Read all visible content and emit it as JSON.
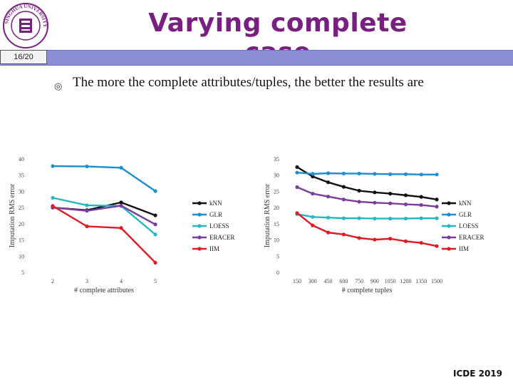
{
  "header": {
    "title": "Varying complete case",
    "page_indicator": "16/20",
    "logo_icon": "university-seal-icon",
    "logo_text": "TSINGHUA UNIVERSITY"
  },
  "bullet": {
    "icon": "circled-dot-bullet-icon",
    "text": "The more the complete attributes/tuples, the better the results are"
  },
  "footer": {
    "text": "ICDE 2019"
  },
  "colors": {
    "title": "#7a1f82",
    "title_bar": "#8b8ed6",
    "kNN": "#111111",
    "GLR": "#1b8fd1",
    "LOESS": "#26b7c2",
    "ERACER": "#7a3d9e",
    "IIM": "#e01b24"
  },
  "chart_data": [
    {
      "type": "line",
      "title": "",
      "xlabel": "# complete attributes",
      "ylabel": "Imputation RMS error",
      "categories": [
        "2",
        "3",
        "4",
        "5"
      ],
      "ylim": [
        5,
        40
      ],
      "yticks": [
        "5",
        "10",
        "15",
        "20",
        "25",
        "30",
        "35",
        "40"
      ],
      "grid": false,
      "legend": "right",
      "series": [
        {
          "name": "kNN",
          "values": [
            25.0,
            24.2,
            26.6,
            22.6
          ]
        },
        {
          "name": "GLR",
          "values": [
            37.8,
            37.7,
            37.3,
            30.1
          ]
        },
        {
          "name": "LOESS",
          "values": [
            28.0,
            25.7,
            25.5,
            16.7
          ]
        },
        {
          "name": "ERACER",
          "values": [
            25.0,
            24.0,
            25.6,
            19.8
          ]
        },
        {
          "name": "IIM",
          "values": [
            25.5,
            19.2,
            18.7,
            8.0
          ]
        }
      ]
    },
    {
      "type": "line",
      "title": "",
      "xlabel": "# complete tuples",
      "ylabel": "Imputation RMS error",
      "categories": [
        "150",
        "300",
        "450",
        "600",
        "750",
        "900",
        "1050",
        "1200",
        "1350",
        "1500"
      ],
      "ylim": [
        0,
        35
      ],
      "yticks": [
        "0",
        "5",
        "10",
        "15",
        "20",
        "25",
        "30",
        "35"
      ],
      "grid": false,
      "legend": "right",
      "series": [
        {
          "name": "kNN",
          "values": [
            32.5,
            29.6,
            27.8,
            26.4,
            25.2,
            24.7,
            24.3,
            23.8,
            23.3,
            22.5
          ]
        },
        {
          "name": "GLR",
          "values": [
            30.8,
            30.4,
            30.6,
            30.5,
            30.5,
            30.4,
            30.3,
            30.3,
            30.2,
            30.2
          ]
        },
        {
          "name": "LOESS",
          "values": [
            18.0,
            17.1,
            16.9,
            16.7,
            16.7,
            16.6,
            16.6,
            16.6,
            16.7,
            16.7
          ]
        },
        {
          "name": "ERACER",
          "values": [
            26.3,
            24.3,
            23.4,
            22.5,
            21.8,
            21.5,
            21.3,
            21.0,
            20.8,
            20.3
          ]
        },
        {
          "name": "IIM",
          "values": [
            18.3,
            14.5,
            12.3,
            11.7,
            10.6,
            10.1,
            10.4,
            9.6,
            9.1,
            8.1
          ]
        }
      ]
    }
  ]
}
